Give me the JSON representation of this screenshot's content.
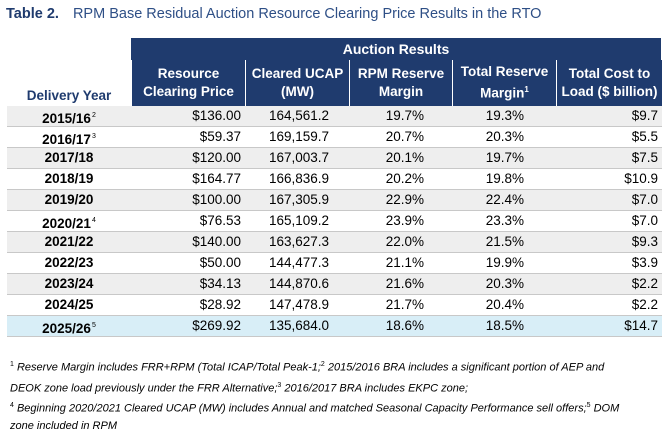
{
  "caption": {
    "label": "Table 2.",
    "title": "RPM Base Residual Auction Resource Clearing Price Results in the RTO"
  },
  "table": {
    "group_header": "Auction Results",
    "row_header": "Delivery Year",
    "columns": [
      "Resource Clearing Price",
      "Cleared UCAP (MW)",
      "RPM Reserve Margin",
      "Total Reserve Margin",
      "Total Cost to Load ($ billion)"
    ],
    "column_superscripts": [
      "",
      "",
      "",
      "1",
      ""
    ],
    "rows": [
      {
        "year": "2015/16",
        "sup": "2",
        "price": "$136.00",
        "ucap": "164,561.2",
        "rpm": "19.7%",
        "total": "19.3%",
        "cost": "$9.7"
      },
      {
        "year": "2016/17",
        "sup": "3",
        "price": "$59.37",
        "ucap": "169,159.7",
        "rpm": "20.7%",
        "total": "20.3%",
        "cost": "$5.5"
      },
      {
        "year": "2017/18",
        "sup": "",
        "price": "$120.00",
        "ucap": "167,003.7",
        "rpm": "20.1%",
        "total": "19.7%",
        "cost": "$7.5"
      },
      {
        "year": "2018/19",
        "sup": "",
        "price": "$164.77",
        "ucap": "166,836.9",
        "rpm": "20.2%",
        "total": "19.8%",
        "cost": "$10.9"
      },
      {
        "year": "2019/20",
        "sup": "",
        "price": "$100.00",
        "ucap": "167,305.9",
        "rpm": "22.9%",
        "total": "22.4%",
        "cost": "$7.0"
      },
      {
        "year": "2020/21",
        "sup": "4",
        "price": "$76.53",
        "ucap": "165,109.2",
        "rpm": "23.9%",
        "total": "23.3%",
        "cost": "$7.0"
      },
      {
        "year": "2021/22",
        "sup": "",
        "price": "$140.00",
        "ucap": "163,627.3",
        "rpm": "22.0%",
        "total": "21.5%",
        "cost": "$9.3"
      },
      {
        "year": "2022/23",
        "sup": "",
        "price": "$50.00",
        "ucap": "144,477.3",
        "rpm": "21.1%",
        "total": "19.9%",
        "cost": "$3.9"
      },
      {
        "year": "2023/24",
        "sup": "",
        "price": "$34.13",
        "ucap": "144,870.6",
        "rpm": "21.6%",
        "total": "20.3%",
        "cost": "$2.2"
      },
      {
        "year": "2024/25",
        "sup": "",
        "price": "$28.92",
        "ucap": "147,478.9",
        "rpm": "21.7%",
        "total": "20.4%",
        "cost": "$2.2"
      },
      {
        "year": "2025/26",
        "sup": "5",
        "price": "$269.92",
        "ucap": "135,684.0",
        "rpm": "18.6%",
        "total": "18.5%",
        "cost": "$14.7"
      }
    ]
  },
  "notes": {
    "line1_sup1": "1",
    "line1_a": " Reserve Margin includes FRR+RPM (Total ICAP/Total Peak-1;",
    "line1_sup2": "2",
    "line1_b": " 2015/2016 BRA includes a significant portion of AEP and",
    "line2_a": "DEOK zone load previously under the FRR Alternative;",
    "line2_sup3": "3",
    "line2_b": " 2016/2017 BRA includes EKPC zone;",
    "line3_sup4": "4",
    "line3_a": " Beginning 2020/2021 Cleared UCAP (MW) includes Annual and matched Seasonal Capacity Performance sell offers;",
    "line3_sup5": "5",
    "line3_b": " DOM",
    "line4": "zone included in RPM"
  },
  "colors": {
    "header_bg": "#1f3b6e",
    "alt_row_bg": "#eeeeee",
    "highlight_row_bg": "#d8eef7"
  }
}
